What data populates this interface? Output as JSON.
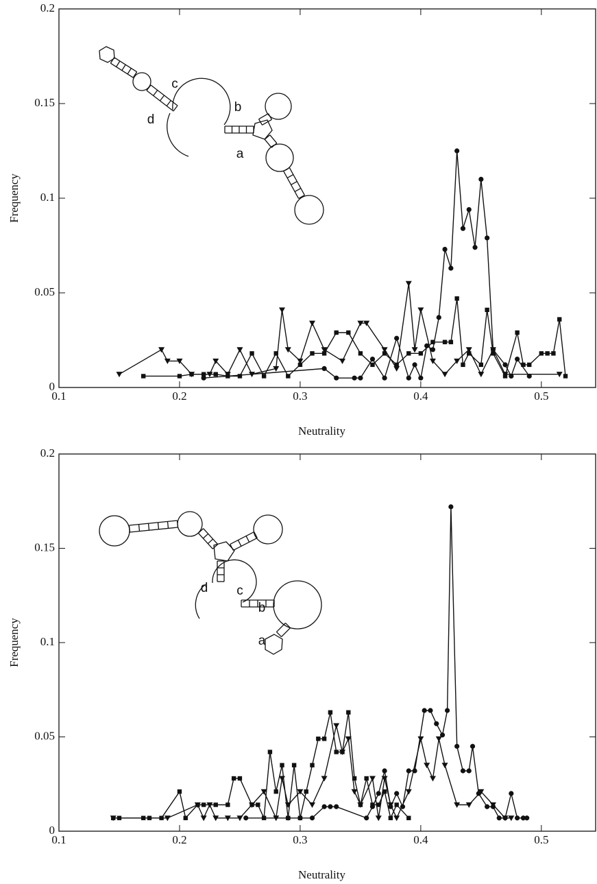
{
  "chart_data": [
    {
      "type": "line",
      "xlabel": "Neutrality",
      "ylabel": "Frequency",
      "xlim": [
        0.1,
        0.545
      ],
      "ylim": [
        0,
        0.2
      ],
      "xticks": [
        0.1,
        0.2,
        0.3,
        0.4,
        0.5
      ],
      "yticks": [
        0,
        0.05,
        0.1,
        0.15,
        0.2
      ],
      "annotations": [
        "a",
        "b",
        "c",
        "d"
      ],
      "series": [
        {
          "color": "#111111",
          "marker": "circle",
          "x": [
            0.22,
            0.32,
            0.33,
            0.345,
            0.35,
            0.36,
            0.37,
            0.38,
            0.39,
            0.395,
            0.4,
            0.405,
            0.41,
            0.415,
            0.42,
            0.425,
            0.43,
            0.435,
            0.44,
            0.445,
            0.45,
            0.455,
            0.46,
            0.47,
            0.475,
            0.48,
            0.49
          ],
          "values": [
            0.005,
            0.01,
            0.005,
            0.005,
            0.005,
            0.015,
            0.005,
            0.026,
            0.005,
            0.012,
            0.005,
            0.022,
            0.02,
            0.037,
            0.073,
            0.063,
            0.125,
            0.084,
            0.094,
            0.074,
            0.11,
            0.079,
            0.02,
            0.012,
            0.006,
            0.015,
            0.006
          ]
        },
        {
          "color": "#111111",
          "marker": "square",
          "x": [
            0.17,
            0.2,
            0.21,
            0.22,
            0.23,
            0.24,
            0.25,
            0.26,
            0.27,
            0.28,
            0.29,
            0.3,
            0.31,
            0.32,
            0.33,
            0.34,
            0.35,
            0.36,
            0.37,
            0.38,
            0.39,
            0.4,
            0.41,
            0.42,
            0.425,
            0.43,
            0.435,
            0.44,
            0.45,
            0.455,
            0.46,
            0.47,
            0.48,
            0.485,
            0.49,
            0.5,
            0.505,
            0.51,
            0.515,
            0.52
          ],
          "values": [
            0.006,
            0.006,
            0.007,
            0.007,
            0.007,
            0.006,
            0.006,
            0.018,
            0.006,
            0.018,
            0.006,
            0.012,
            0.018,
            0.018,
            0.029,
            0.029,
            0.018,
            0.012,
            0.018,
            0.012,
            0.018,
            0.018,
            0.024,
            0.024,
            0.024,
            0.047,
            0.012,
            0.018,
            0.012,
            0.041,
            0.018,
            0.006,
            0.029,
            0.012,
            0.012,
            0.018,
            0.018,
            0.018,
            0.036,
            0.006
          ]
        },
        {
          "color": "#111111",
          "marker": "triangle",
          "x": [
            0.15,
            0.185,
            0.19,
            0.2,
            0.21,
            0.225,
            0.23,
            0.24,
            0.25,
            0.26,
            0.28,
            0.285,
            0.29,
            0.3,
            0.31,
            0.32,
            0.335,
            0.35,
            0.355,
            0.37,
            0.38,
            0.39,
            0.395,
            0.4,
            0.41,
            0.42,
            0.43,
            0.44,
            0.45,
            0.46,
            0.47,
            0.515
          ],
          "values": [
            0.007,
            0.02,
            0.014,
            0.014,
            0.007,
            0.007,
            0.014,
            0.007,
            0.02,
            0.007,
            0.01,
            0.041,
            0.02,
            0.014,
            0.034,
            0.02,
            0.014,
            0.034,
            0.034,
            0.02,
            0.01,
            0.055,
            0.02,
            0.041,
            0.014,
            0.007,
            0.014,
            0.02,
            0.007,
            0.02,
            0.007,
            0.007
          ]
        }
      ]
    },
    {
      "type": "line",
      "xlabel": "Neutrality",
      "ylabel": "Frequency",
      "xlim": [
        0.1,
        0.545
      ],
      "ylim": [
        0,
        0.2
      ],
      "xticks": [
        0.1,
        0.2,
        0.3,
        0.4,
        0.5
      ],
      "yticks": [
        0,
        0.05,
        0.1,
        0.15,
        0.2
      ],
      "annotations": [
        "a",
        "b",
        "c",
        "d"
      ],
      "series": [
        {
          "color": "#111111",
          "marker": "circle",
          "x": [
            0.255,
            0.29,
            0.3,
            0.31,
            0.32,
            0.325,
            0.33,
            0.355,
            0.36,
            0.365,
            0.37,
            0.375,
            0.38,
            0.385,
            0.39,
            0.395,
            0.403,
            0.408,
            0.413,
            0.418,
            0.422,
            0.425,
            0.43,
            0.435,
            0.44,
            0.443,
            0.448,
            0.455,
            0.46,
            0.465,
            0.47,
            0.475,
            0.48,
            0.485,
            0.488
          ],
          "values": [
            0.007,
            0.007,
            0.007,
            0.007,
            0.013,
            0.013,
            0.013,
            0.007,
            0.013,
            0.02,
            0.032,
            0.013,
            0.02,
            0.013,
            0.032,
            0.032,
            0.064,
            0.064,
            0.057,
            0.051,
            0.064,
            0.172,
            0.045,
            0.032,
            0.032,
            0.045,
            0.02,
            0.013,
            0.013,
            0.007,
            0.007,
            0.02,
            0.007,
            0.007,
            0.007
          ]
        },
        {
          "color": "#111111",
          "marker": "square",
          "x": [
            0.145,
            0.15,
            0.17,
            0.175,
            0.185,
            0.2,
            0.205,
            0.215,
            0.22,
            0.23,
            0.24,
            0.245,
            0.25,
            0.26,
            0.265,
            0.27,
            0.275,
            0.28,
            0.285,
            0.29,
            0.295,
            0.3,
            0.305,
            0.31,
            0.315,
            0.32,
            0.325,
            0.33,
            0.335,
            0.34,
            0.345,
            0.35,
            0.355,
            0.36,
            0.365,
            0.37,
            0.375,
            0.38,
            0.39
          ],
          "values": [
            0.007,
            0.007,
            0.007,
            0.007,
            0.007,
            0.021,
            0.007,
            0.014,
            0.014,
            0.014,
            0.014,
            0.028,
            0.028,
            0.014,
            0.014,
            0.007,
            0.042,
            0.021,
            0.035,
            0.007,
            0.035,
            0.007,
            0.021,
            0.035,
            0.049,
            0.049,
            0.063,
            0.042,
            0.042,
            0.063,
            0.028,
            0.014,
            0.028,
            0.014,
            0.014,
            0.021,
            0.007,
            0.014,
            0.007
          ]
        },
        {
          "color": "#111111",
          "marker": "triangle",
          "x": [
            0.145,
            0.19,
            0.215,
            0.22,
            0.225,
            0.23,
            0.24,
            0.25,
            0.26,
            0.27,
            0.28,
            0.285,
            0.29,
            0.3,
            0.31,
            0.32,
            0.33,
            0.335,
            0.34,
            0.345,
            0.35,
            0.36,
            0.365,
            0.37,
            0.375,
            0.38,
            0.39,
            0.4,
            0.405,
            0.41,
            0.415,
            0.42,
            0.43,
            0.44,
            0.45,
            0.46,
            0.47,
            0.475
          ],
          "values": [
            0.007,
            0.007,
            0.014,
            0.007,
            0.014,
            0.007,
            0.007,
            0.007,
            0.014,
            0.021,
            0.007,
            0.028,
            0.014,
            0.021,
            0.014,
            0.028,
            0.056,
            0.042,
            0.049,
            0.021,
            0.014,
            0.028,
            0.007,
            0.028,
            0.014,
            0.007,
            0.021,
            0.049,
            0.035,
            0.028,
            0.049,
            0.035,
            0.014,
            0.014,
            0.021,
            0.014,
            0.007,
            0.007
          ]
        }
      ]
    }
  ]
}
